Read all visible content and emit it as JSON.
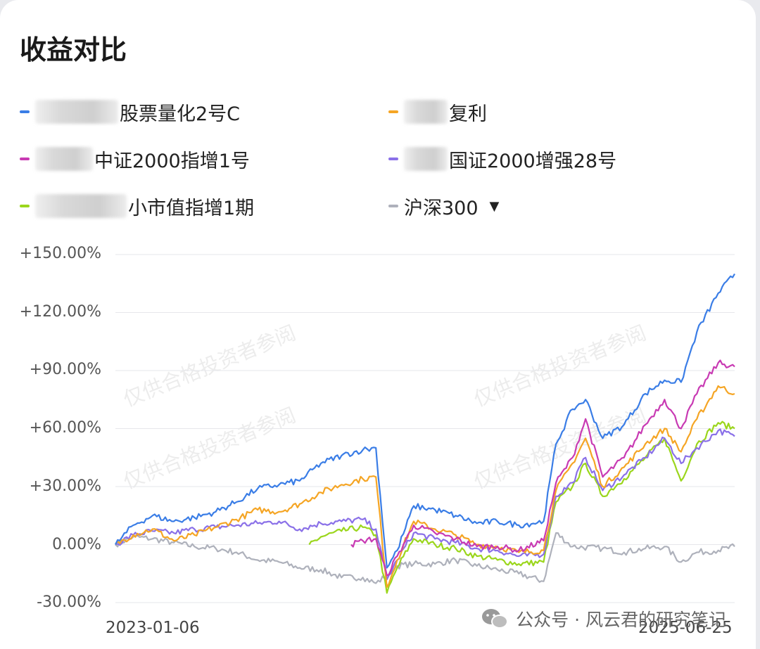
{
  "title": "收益对比",
  "chart_data": {
    "type": "line",
    "x_start": "2023-01-06",
    "x_end": "2025-06-25",
    "xlabel": "",
    "ylabel": "",
    "ylim": [
      -30,
      150
    ],
    "yticks": [
      "+150.00%",
      "+120.00%",
      "+90.00%",
      "+60.00%",
      "+30.00%",
      "0.00%",
      "-30.00%"
    ],
    "yticks_values": [
      150,
      120,
      90,
      60,
      30,
      0,
      -30
    ],
    "grid": true,
    "series": [
      {
        "name": "股票量化2号C",
        "color": "#3a7de6",
        "points": [
          [
            "2023-01-06",
            0
          ],
          [
            "2023-02-01",
            10
          ],
          [
            "2023-03-01",
            15
          ],
          [
            "2023-04-01",
            12
          ],
          [
            "2023-05-01",
            14
          ],
          [
            "2023-06-01",
            17
          ],
          [
            "2023-07-01",
            22
          ],
          [
            "2023-08-01",
            29
          ],
          [
            "2023-09-01",
            31
          ],
          [
            "2023-10-01",
            33
          ],
          [
            "2023-11-01",
            42
          ],
          [
            "2023-12-01",
            46
          ],
          [
            "2024-01-01",
            49
          ],
          [
            "2024-01-20",
            50
          ],
          [
            "2024-02-05",
            -12
          ],
          [
            "2024-02-20",
            -3
          ],
          [
            "2024-03-15",
            20
          ],
          [
            "2024-04-15",
            18
          ],
          [
            "2024-05-15",
            15
          ],
          [
            "2024-06-15",
            11
          ],
          [
            "2024-07-15",
            12
          ],
          [
            "2024-08-15",
            10
          ],
          [
            "2024-09-20",
            12
          ],
          [
            "2024-10-08",
            52
          ],
          [
            "2024-11-01",
            70
          ],
          [
            "2024-11-20",
            75
          ],
          [
            "2024-12-15",
            55
          ],
          [
            "2025-01-15",
            62
          ],
          [
            "2025-02-15",
            78
          ],
          [
            "2025-03-15",
            85
          ],
          [
            "2025-04-08",
            84
          ],
          [
            "2025-05-01",
            110
          ],
          [
            "2025-06-01",
            130
          ],
          [
            "2025-06-25",
            140
          ]
        ]
      },
      {
        "name": "复利",
        "color": "#f5a524",
        "points": [
          [
            "2023-01-06",
            0
          ],
          [
            "2023-02-01",
            5
          ],
          [
            "2023-03-01",
            8
          ],
          [
            "2023-04-01",
            2
          ],
          [
            "2023-05-01",
            5
          ],
          [
            "2023-06-01",
            9
          ],
          [
            "2023-07-01",
            13
          ],
          [
            "2023-08-01",
            18
          ],
          [
            "2023-09-01",
            17
          ],
          [
            "2023-10-01",
            21
          ],
          [
            "2023-11-01",
            27
          ],
          [
            "2023-12-01",
            31
          ],
          [
            "2024-01-01",
            34
          ],
          [
            "2024-01-20",
            35
          ],
          [
            "2024-02-05",
            -22
          ],
          [
            "2024-02-20",
            -8
          ],
          [
            "2024-03-15",
            12
          ],
          [
            "2024-04-15",
            8
          ],
          [
            "2024-05-15",
            5
          ],
          [
            "2024-06-15",
            0
          ],
          [
            "2024-07-15",
            -1
          ],
          [
            "2024-08-15",
            -4
          ],
          [
            "2024-09-20",
            -3
          ],
          [
            "2024-10-08",
            28
          ],
          [
            "2024-11-01",
            42
          ],
          [
            "2024-11-20",
            55
          ],
          [
            "2024-12-15",
            30
          ],
          [
            "2025-01-15",
            40
          ],
          [
            "2025-02-15",
            52
          ],
          [
            "2025-03-15",
            60
          ],
          [
            "2025-04-08",
            48
          ],
          [
            "2025-05-01",
            65
          ],
          [
            "2025-06-01",
            82
          ],
          [
            "2025-06-25",
            78
          ]
        ]
      },
      {
        "name": "中证2000指增1号",
        "color": "#c83ab3",
        "points": [
          [
            "2023-12-15",
            0
          ],
          [
            "2024-01-01",
            2
          ],
          [
            "2024-01-20",
            3
          ],
          [
            "2024-02-05",
            -16
          ],
          [
            "2024-02-20",
            -6
          ],
          [
            "2024-03-15",
            10
          ],
          [
            "2024-04-15",
            6
          ],
          [
            "2024-05-15",
            3
          ],
          [
            "2024-06-15",
            -1
          ],
          [
            "2024-07-15",
            -1
          ],
          [
            "2024-08-15",
            -3
          ],
          [
            "2024-09-20",
            2
          ],
          [
            "2024-10-08",
            32
          ],
          [
            "2024-11-01",
            45
          ],
          [
            "2024-11-20",
            65
          ],
          [
            "2024-12-15",
            35
          ],
          [
            "2025-01-15",
            45
          ],
          [
            "2025-02-15",
            62
          ],
          [
            "2025-03-15",
            75
          ],
          [
            "2025-04-08",
            60
          ],
          [
            "2025-05-01",
            78
          ],
          [
            "2025-06-01",
            94
          ],
          [
            "2025-06-25",
            92
          ]
        ]
      },
      {
        "name": "国证2000增强28号",
        "color": "#8a70e8",
        "points": [
          [
            "2023-01-06",
            0
          ],
          [
            "2023-02-01",
            5
          ],
          [
            "2023-03-01",
            7
          ],
          [
            "2023-04-01",
            6
          ],
          [
            "2023-05-01",
            8
          ],
          [
            "2023-06-01",
            9
          ],
          [
            "2023-07-01",
            10
          ],
          [
            "2023-08-01",
            11
          ],
          [
            "2023-09-01",
            12
          ],
          [
            "2023-10-01",
            8
          ],
          [
            "2023-11-01",
            11
          ],
          [
            "2023-12-01",
            12
          ],
          [
            "2024-01-01",
            13
          ],
          [
            "2024-01-20",
            8
          ],
          [
            "2024-02-05",
            -18
          ],
          [
            "2024-02-20",
            -8
          ],
          [
            "2024-03-15",
            6
          ],
          [
            "2024-04-15",
            3
          ],
          [
            "2024-05-15",
            1
          ],
          [
            "2024-06-15",
            -2
          ],
          [
            "2024-07-15",
            -3
          ],
          [
            "2024-08-15",
            -6
          ],
          [
            "2024-09-20",
            -5
          ],
          [
            "2024-10-08",
            25
          ],
          [
            "2024-11-01",
            32
          ],
          [
            "2024-11-20",
            45
          ],
          [
            "2024-12-15",
            28
          ],
          [
            "2025-01-15",
            36
          ],
          [
            "2025-02-15",
            45
          ],
          [
            "2025-03-15",
            55
          ],
          [
            "2025-04-08",
            42
          ],
          [
            "2025-05-01",
            50
          ],
          [
            "2025-06-01",
            59
          ],
          [
            "2025-06-25",
            56
          ]
        ]
      },
      {
        "name": "小市值指增1期",
        "color": "#9bd61c",
        "points": [
          [
            "2023-10-15",
            0
          ],
          [
            "2023-11-01",
            4
          ],
          [
            "2023-12-01",
            7
          ],
          [
            "2024-01-01",
            9
          ],
          [
            "2024-01-20",
            5
          ],
          [
            "2024-02-05",
            -25
          ],
          [
            "2024-02-20",
            -12
          ],
          [
            "2024-03-15",
            3
          ],
          [
            "2024-04-15",
            0
          ],
          [
            "2024-05-15",
            -2
          ],
          [
            "2024-06-15",
            -6
          ],
          [
            "2024-07-15",
            -8
          ],
          [
            "2024-08-15",
            -10
          ],
          [
            "2024-09-20",
            -9
          ],
          [
            "2024-10-08",
            22
          ],
          [
            "2024-11-01",
            30
          ],
          [
            "2024-11-20",
            42
          ],
          [
            "2024-12-15",
            25
          ],
          [
            "2025-01-15",
            34
          ],
          [
            "2025-02-15",
            45
          ],
          [
            "2025-03-15",
            55
          ],
          [
            "2025-04-08",
            33
          ],
          [
            "2025-05-01",
            52
          ],
          [
            "2025-06-01",
            63
          ],
          [
            "2025-06-25",
            60
          ]
        ]
      },
      {
        "name": "沪深300",
        "color": "#aeb1bb",
        "points": [
          [
            "2023-01-06",
            0
          ],
          [
            "2023-02-01",
            4
          ],
          [
            "2023-03-01",
            3
          ],
          [
            "2023-04-01",
            1
          ],
          [
            "2023-05-01",
            -1
          ],
          [
            "2023-06-01",
            -2
          ],
          [
            "2023-07-01",
            -4
          ],
          [
            "2023-08-01",
            -8
          ],
          [
            "2023-09-01",
            -9
          ],
          [
            "2023-10-01",
            -12
          ],
          [
            "2023-11-01",
            -13
          ],
          [
            "2023-12-01",
            -17
          ],
          [
            "2024-01-01",
            -17
          ],
          [
            "2024-01-20",
            -20
          ],
          [
            "2024-02-05",
            -16
          ],
          [
            "2024-02-20",
            -11
          ],
          [
            "2024-03-15",
            -10
          ],
          [
            "2024-04-15",
            -10
          ],
          [
            "2024-05-15",
            -8
          ],
          [
            "2024-06-15",
            -11
          ],
          [
            "2024-07-15",
            -13
          ],
          [
            "2024-08-15",
            -15
          ],
          [
            "2024-09-20",
            -19
          ],
          [
            "2024-10-08",
            6
          ],
          [
            "2024-11-01",
            -1
          ],
          [
            "2024-12-15",
            -2
          ],
          [
            "2025-01-15",
            -4
          ],
          [
            "2025-02-15",
            -2
          ],
          [
            "2025-03-15",
            -1
          ],
          [
            "2025-04-08",
            -9
          ],
          [
            "2025-05-01",
            -4
          ],
          [
            "2025-06-01",
            -3
          ],
          [
            "2025-06-25",
            -1
          ]
        ]
      }
    ],
    "legend": [
      "股票量化2号C",
      "复利",
      "中证2000指增1号",
      "国证2000增强28号",
      "小市值指增1期",
      "沪深300"
    ],
    "legend_placement": "top"
  },
  "legend_dropdown_glyph": "▼",
  "watermark_text": "仅供合格投资者参阅",
  "source_label": "公众号 · 风云君的研究笔记",
  "icons": {
    "source": "wechat-icon",
    "legend_more": "caret-down-icon"
  }
}
